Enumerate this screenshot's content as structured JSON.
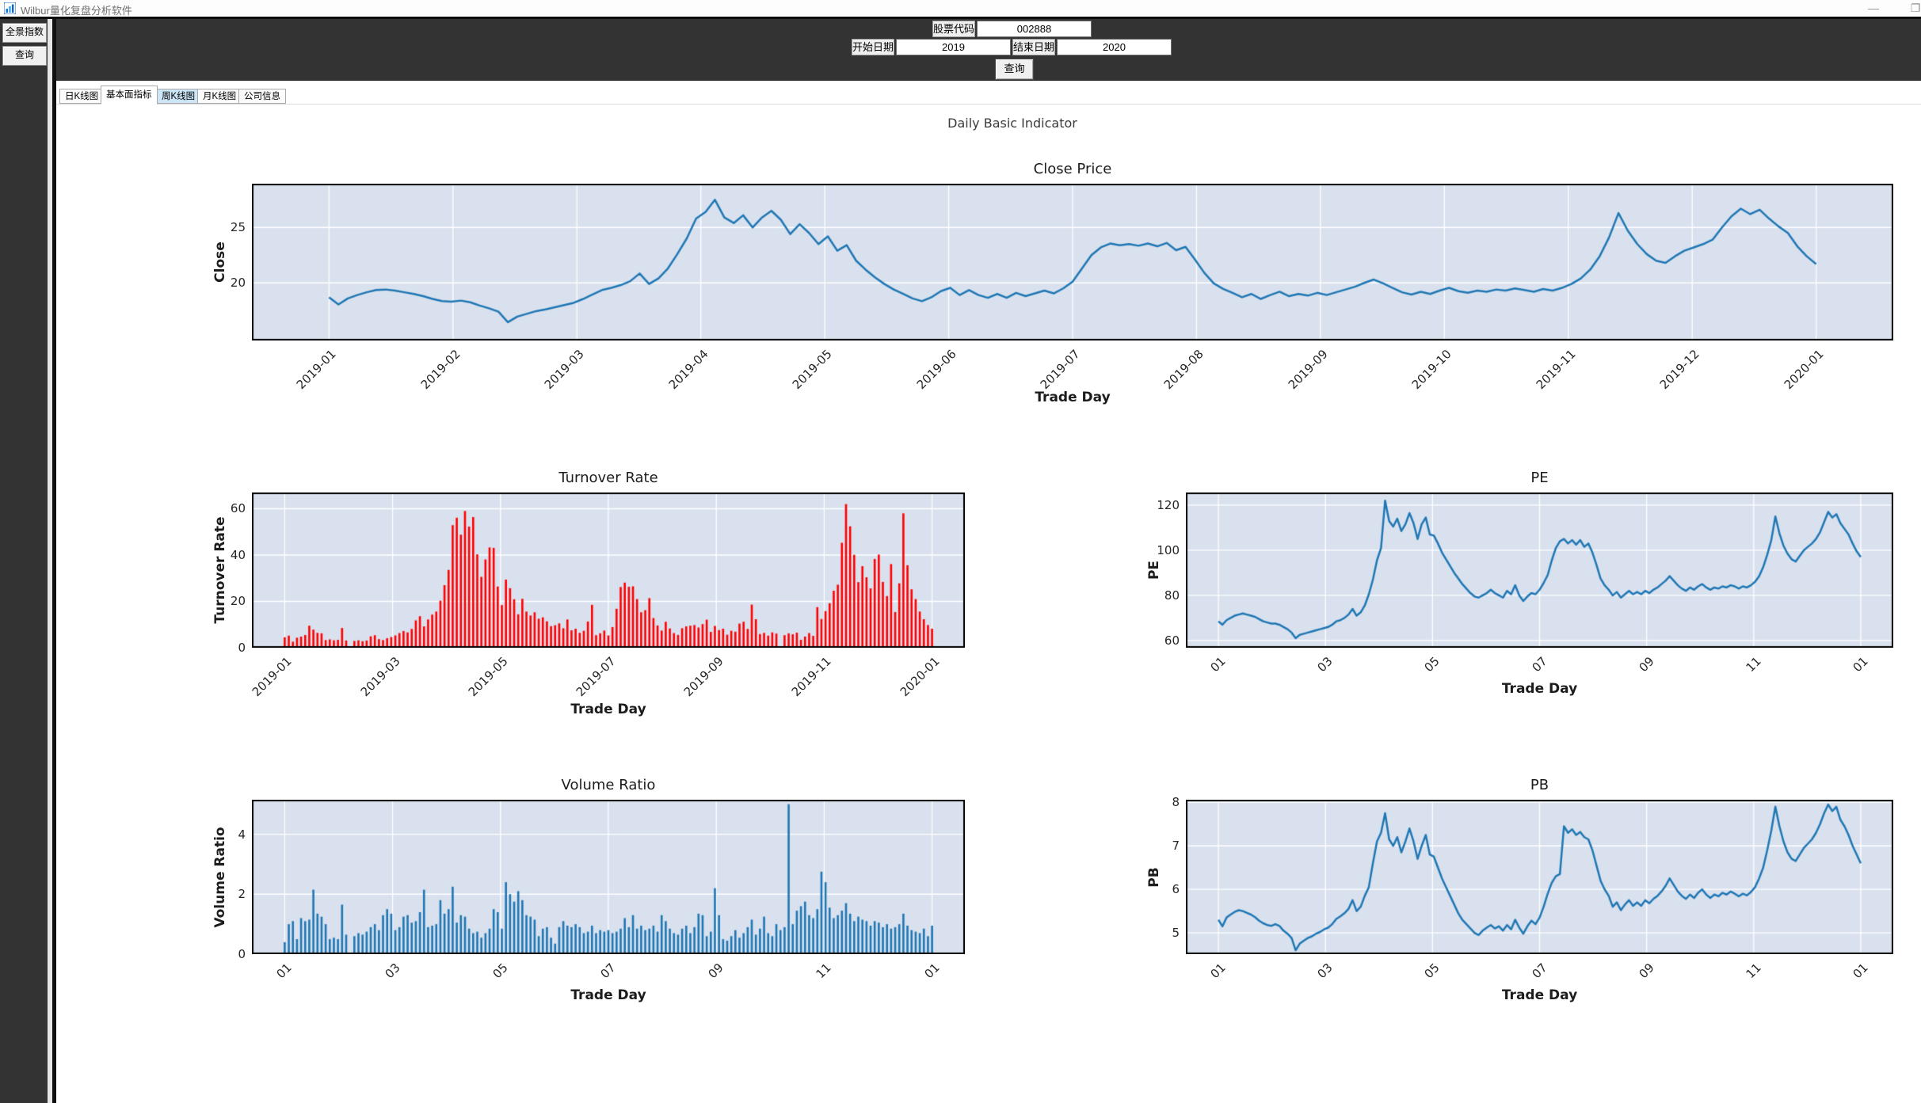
{
  "window": {
    "title": "Wilbur量化复盘分析软件",
    "minimize_glyph": "—",
    "maximize_glyph": "❐"
  },
  "sidebar": {
    "buttons": [
      {
        "label": "全景指数"
      },
      {
        "label": "查询"
      }
    ]
  },
  "toolbar": {
    "stock_code_label": "股票代码",
    "stock_code_value": "002888",
    "start_date_label": "开始日期",
    "start_date_value": "2019",
    "end_date_label": "结束日期",
    "end_date_value": "2020",
    "query_button_label": "查询"
  },
  "tabs": [
    {
      "label": "日K线图"
    },
    {
      "label": "基本面指标"
    },
    {
      "label": "周K线图"
    },
    {
      "label": "月K线图"
    },
    {
      "label": "公司信息"
    }
  ],
  "figure": {
    "suptitle": "Daily Basic Indicator",
    "plot_bg": "#d9e1ee",
    "grid_color": "#ffffff"
  },
  "chart_data": [
    {
      "id": "close_price",
      "type": "line",
      "title": "Close Price",
      "xlabel": "Trade Day",
      "ylabel": "Close",
      "color": "#1f77b4",
      "ylim": [
        14.8,
        28.95
      ],
      "yticks": [
        20,
        25
      ],
      "grid": true,
      "x_margin": 0.047,
      "xticklabels": [
        "2019-01",
        "2019-02",
        "2019-03",
        "2019-04",
        "2019-05",
        "2019-06",
        "2019-07",
        "2019-08",
        "2019-09",
        "2019-10",
        "2019-11",
        "2019-12",
        "2020-01"
      ],
      "values": [
        18.7,
        18.05,
        18.6,
        18.9,
        19.15,
        19.35,
        19.4,
        19.3,
        19.15,
        19.0,
        18.8,
        18.55,
        18.35,
        18.3,
        18.4,
        18.25,
        17.95,
        17.7,
        17.4,
        16.45,
        16.95,
        17.2,
        17.45,
        17.6,
        17.8,
        18.0,
        18.2,
        18.55,
        18.95,
        19.35,
        19.55,
        19.8,
        20.15,
        20.85,
        19.9,
        20.4,
        21.3,
        22.6,
        24.0,
        25.8,
        26.4,
        27.5,
        25.9,
        25.4,
        26.1,
        25.0,
        25.9,
        26.5,
        25.7,
        24.4,
        25.3,
        24.5,
        23.5,
        24.2,
        22.9,
        23.4,
        22.0,
        21.2,
        20.5,
        19.9,
        19.4,
        19.0,
        18.6,
        18.35,
        18.7,
        19.25,
        19.55,
        18.9,
        19.35,
        18.9,
        18.65,
        19.0,
        18.65,
        19.1,
        18.8,
        19.05,
        19.3,
        19.05,
        19.5,
        20.1,
        21.3,
        22.5,
        23.2,
        23.55,
        23.4,
        23.5,
        23.35,
        23.55,
        23.3,
        23.6,
        22.95,
        23.25,
        22.1,
        20.9,
        19.95,
        19.45,
        19.1,
        18.7,
        19.0,
        18.55,
        18.9,
        19.2,
        18.8,
        19.0,
        18.85,
        19.1,
        18.9,
        19.15,
        19.4,
        19.65,
        20.0,
        20.3,
        19.95,
        19.55,
        19.15,
        18.95,
        19.2,
        19.0,
        19.3,
        19.55,
        19.25,
        19.1,
        19.3,
        19.2,
        19.4,
        19.3,
        19.5,
        19.35,
        19.2,
        19.45,
        19.3,
        19.55,
        19.9,
        20.4,
        21.2,
        22.4,
        24.1,
        26.3,
        24.7,
        23.5,
        22.6,
        22.0,
        21.8,
        22.4,
        22.9,
        23.2,
        23.5,
        23.9,
        25.0,
        26.0,
        26.7,
        26.2,
        26.6,
        25.8,
        25.1,
        24.5,
        23.3,
        22.4,
        21.7
      ]
    },
    {
      "id": "turnover_rate",
      "type": "bar",
      "title": "Turnover Rate",
      "xlabel": "Trade Day",
      "ylabel": "Turnover Rate",
      "color": "#ff0000",
      "ylim": [
        0,
        67
      ],
      "yticks": [
        0,
        20,
        40,
        60
      ],
      "grid": true,
      "x_margin": 0.046,
      "xticklabels": [
        "2019-01",
        "2019-03",
        "2019-05",
        "2019-07",
        "2019-09",
        "2019-11",
        "2020-01"
      ],
      "values": [
        4.5,
        5.2,
        2.6,
        4.3,
        4.8,
        5.5,
        9.5,
        7.8,
        6.4,
        6.2,
        3.3,
        3.6,
        3.2,
        3.4,
        8.5,
        3.1,
        0,
        2.9,
        3.2,
        2.8,
        3.1,
        4.9,
        5.4,
        3.7,
        3.3,
        4.1,
        4.6,
        5.3,
        6.3,
        7.2,
        6.6,
        8.1,
        11.8,
        13.6,
        9.2,
        12.2,
        14.3,
        15.6,
        20.3,
        27.0,
        33.6,
        52.9,
        56.1,
        48.8,
        59.0,
        52.3,
        56.4,
        40.3,
        30.6,
        38.1,
        43.3,
        43.1,
        26.4,
        18.4,
        29.4,
        25.7,
        20.9,
        14.4,
        21.1,
        15.6,
        13.9,
        15.3,
        12.5,
        13.1,
        11.4,
        9.3,
        9.7,
        10.5,
        8.4,
        12.2,
        7.5,
        8.2,
        6.4,
        7.3,
        11.3,
        18.5,
        5.4,
        6.2,
        7.4,
        5.3,
        8.9,
        16.8,
        26.2,
        28.1,
        26.3,
        26.5,
        21.0,
        15.3,
        16.2,
        21.4,
        12.8,
        9.6,
        7.4,
        11.2,
        8.3,
        6.3,
        5.5,
        8.4,
        9.2,
        9.5,
        9.8,
        8.7,
        10.2,
        12.1,
        6.8,
        9.4,
        7.6,
        8.2,
        5.6,
        7.3,
        6.9,
        10.4,
        11.2,
        8.1,
        18.6,
        12.3,
        5.9,
        6.4,
        5.2,
        6.6,
        6.1,
        0,
        5.4,
        6.2,
        5.8,
        6.5,
        3.4,
        4.8,
        6.3,
        5.1,
        17.5,
        12.4,
        15.8,
        19.2,
        24.6,
        27.2,
        45.3,
        62.0,
        52.4,
        40.1,
        28.3,
        35.2,
        30.4,
        25.6,
        38.3,
        40.2,
        28.4,
        22.3,
        36.1,
        15.4,
        27.8,
        58.0,
        35.6,
        25.2,
        21.0,
        15.6,
        12.3,
        9.8,
        8.2
      ]
    },
    {
      "id": "pe",
      "type": "line",
      "title": "PE",
      "xlabel": "Trade Day",
      "ylabel": "PE",
      "color": "#1f77b4",
      "ylim": [
        56.8,
        125.6
      ],
      "yticks": [
        60,
        80,
        100,
        120
      ],
      "grid": true,
      "x_margin": 0.046,
      "xticklabels": [
        "01",
        "03",
        "05",
        "07",
        "09",
        "11",
        "01"
      ],
      "values": [
        68.5,
        67.0,
        69.0,
        70.0,
        71.0,
        71.5,
        72.0,
        71.5,
        71.0,
        70.5,
        69.5,
        68.5,
        68.0,
        67.5,
        67.5,
        67.0,
        66.0,
        65.0,
        63.5,
        61.0,
        62.5,
        63.0,
        63.5,
        64.0,
        64.5,
        65.0,
        65.5,
        66.0,
        67.0,
        68.5,
        69.0,
        70.0,
        71.5,
        74.0,
        71.0,
        72.5,
        75.5,
        80.5,
        87.0,
        95.5,
        101.0,
        122.0,
        113.0,
        110.5,
        114.0,
        108.5,
        111.5,
        116.5,
        112.0,
        105.0,
        111.5,
        114.5,
        107.0,
        106.5,
        103.0,
        99.0,
        96.0,
        93.0,
        90.0,
        87.5,
        85.0,
        83.0,
        81.0,
        79.5,
        79.0,
        80.0,
        81.0,
        82.5,
        81.0,
        80.0,
        79.0,
        82.0,
        80.5,
        84.5,
        80.0,
        77.5,
        79.5,
        81.0,
        80.5,
        82.5,
        85.5,
        89.0,
        95.5,
        101.0,
        104.0,
        105.0,
        103.0,
        104.5,
        102.5,
        104.5,
        101.5,
        103.0,
        99.0,
        93.5,
        87.5,
        84.5,
        82.5,
        80.0,
        81.5,
        79.0,
        80.5,
        82.0,
        80.5,
        81.5,
        80.5,
        82.0,
        81.0,
        82.5,
        83.5,
        85.0,
        86.5,
        88.5,
        86.5,
        84.5,
        83.0,
        82.0,
        83.5,
        82.5,
        84.0,
        85.0,
        83.5,
        82.5,
        83.5,
        83.0,
        84.0,
        83.5,
        84.5,
        84.0,
        83.0,
        84.0,
        83.5,
        84.5,
        86.0,
        88.5,
        92.5,
        98.0,
        104.5,
        115.0,
        107.5,
        102.0,
        98.5,
        96.0,
        95.0,
        97.5,
        100.0,
        101.5,
        103.0,
        105.0,
        108.0,
        112.5,
        117.0,
        114.5,
        116.0,
        112.0,
        109.5,
        107.0,
        103.0,
        99.5,
        97.0
      ]
    },
    {
      "id": "volume_ratio",
      "type": "bar",
      "title": "Volume Ratio",
      "xlabel": "Trade Day",
      "ylabel": "Volume Ratio",
      "color": "#1f77b4",
      "ylim": [
        0,
        5.15
      ],
      "yticks": [
        0,
        2,
        4
      ],
      "grid": true,
      "x_margin": 0.046,
      "xticklabels": [
        "01",
        "03",
        "05",
        "07",
        "09",
        "11",
        "01"
      ],
      "values": [
        0.4,
        1.0,
        1.1,
        0.5,
        1.2,
        1.1,
        1.15,
        2.15,
        1.35,
        1.25,
        1.0,
        0.5,
        0.55,
        0.5,
        1.65,
        0.65,
        0,
        0.6,
        0.7,
        0.65,
        0.75,
        0.9,
        1.0,
        0.8,
        1.3,
        1.5,
        1.35,
        0.8,
        0.9,
        1.25,
        1.3,
        1.05,
        1.1,
        1.4,
        2.15,
        0.9,
        0.95,
        1.0,
        1.8,
        1.35,
        1.5,
        2.25,
        1.05,
        1.3,
        1.25,
        0.85,
        0.7,
        0.75,
        0.55,
        0.7,
        0.85,
        1.5,
        1.4,
        0.85,
        2.4,
        2.0,
        1.75,
        2.1,
        1.8,
        1.3,
        1.25,
        1.15,
        0.6,
        0.85,
        0.9,
        0.55,
        0.35,
        0.9,
        1.1,
        0.95,
        0.9,
        1.0,
        0.9,
        0.7,
        0.75,
        0.95,
        0.7,
        0.8,
        0.75,
        0.8,
        0.7,
        0.75,
        0.85,
        1.2,
        0.9,
        1.3,
        0.85,
        0.95,
        0.8,
        0.85,
        0.95,
        0.75,
        1.3,
        1.1,
        0.85,
        0.7,
        0.65,
        0.85,
        0.95,
        0.7,
        0.9,
        1.35,
        1.3,
        0.6,
        0.75,
        2.2,
        1.3,
        0.5,
        0.45,
        0.6,
        0.8,
        0.55,
        0.7,
        0.9,
        1.15,
        0.65,
        0.85,
        1.25,
        0.7,
        0.6,
        1.0,
        0.8,
        0.9,
        5.0,
        1.0,
        1.45,
        1.6,
        1.75,
        1.3,
        1.2,
        1.5,
        2.75,
        2.4,
        1.55,
        1.2,
        1.3,
        1.45,
        1.7,
        1.35,
        1.1,
        1.25,
        1.15,
        1.1,
        0.95,
        1.1,
        1.05,
        0.9,
        1.0,
        0.85,
        0.9,
        1.0,
        1.35,
        0.95,
        0.8,
        0.75,
        0.7,
        0.85,
        0.6,
        0.95
      ]
    },
    {
      "id": "pb",
      "type": "line",
      "title": "PB",
      "xlabel": "Trade Day",
      "ylabel": "PB",
      "color": "#1f77b4",
      "ylim": [
        4.51,
        8.06
      ],
      "yticks": [
        5,
        6,
        7,
        8
      ],
      "grid": true,
      "x_margin": 0.046,
      "xticklabels": [
        "01",
        "03",
        "05",
        "07",
        "09",
        "11",
        "01"
      ],
      "values": [
        5.3,
        5.15,
        5.35,
        5.42,
        5.48,
        5.52,
        5.5,
        5.46,
        5.42,
        5.36,
        5.28,
        5.22,
        5.18,
        5.16,
        5.2,
        5.16,
        5.05,
        4.98,
        4.88,
        4.6,
        4.75,
        4.82,
        4.88,
        4.92,
        4.98,
        5.02,
        5.08,
        5.12,
        5.2,
        5.32,
        5.38,
        5.45,
        5.55,
        5.75,
        5.5,
        5.6,
        5.85,
        6.05,
        6.6,
        7.1,
        7.3,
        7.75,
        7.15,
        7.0,
        7.2,
        6.85,
        7.1,
        7.4,
        7.1,
        6.7,
        7.0,
        7.25,
        6.8,
        6.75,
        6.5,
        6.25,
        6.05,
        5.85,
        5.65,
        5.45,
        5.3,
        5.2,
        5.1,
        5.0,
        4.95,
        5.05,
        5.12,
        5.18,
        5.1,
        5.15,
        5.05,
        5.18,
        5.08,
        5.3,
        5.12,
        4.98,
        5.15,
        5.28,
        5.2,
        5.35,
        5.6,
        5.9,
        6.15,
        6.3,
        6.35,
        7.45,
        7.3,
        7.38,
        7.25,
        7.32,
        7.2,
        7.15,
        6.9,
        6.55,
        6.2,
        6.0,
        5.85,
        5.6,
        5.7,
        5.52,
        5.65,
        5.75,
        5.62,
        5.7,
        5.62,
        5.75,
        5.68,
        5.78,
        5.85,
        5.95,
        6.08,
        6.25,
        6.1,
        5.95,
        5.85,
        5.78,
        5.88,
        5.8,
        5.92,
        6.0,
        5.88,
        5.8,
        5.88,
        5.84,
        5.92,
        5.88,
        5.95,
        5.9,
        5.84,
        5.9,
        5.86,
        5.94,
        6.05,
        6.25,
        6.5,
        6.9,
        7.35,
        7.9,
        7.45,
        7.1,
        6.85,
        6.7,
        6.65,
        6.8,
        6.95,
        7.05,
        7.15,
        7.3,
        7.5,
        7.75,
        7.95,
        7.8,
        7.9,
        7.6,
        7.45,
        7.25,
        7.0,
        6.8,
        6.6
      ]
    }
  ]
}
